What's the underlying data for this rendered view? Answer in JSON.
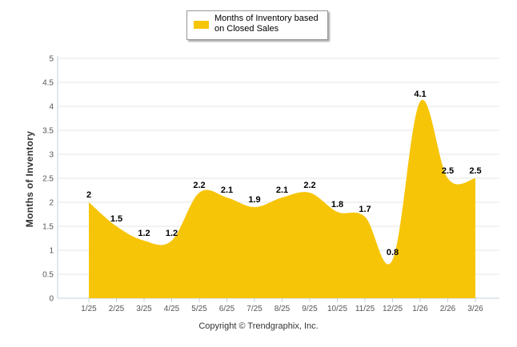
{
  "chart_data": {
    "type": "area",
    "title": "",
    "xlabel": "",
    "ylabel": "Months of Inventory",
    "ylim": [
      0,
      5
    ],
    "yticks": [
      "0",
      "0.5",
      "1",
      "1.5",
      "2",
      "2.5",
      "3",
      "3.5",
      "4",
      "4.5",
      "5"
    ],
    "categories": [
      "1/25",
      "2/25",
      "3/25",
      "4/25",
      "5/25",
      "6/25",
      "7/25",
      "8/25",
      "9/25",
      "10/25",
      "11/25",
      "12/25",
      "1/26",
      "2/26",
      "3/26"
    ],
    "series": [
      {
        "name": "Months of Inventory based on Closed Sales",
        "values": [
          2,
          1.5,
          1.2,
          1.2,
          2.2,
          2.1,
          1.9,
          2.1,
          2.2,
          1.8,
          1.7,
          0.8,
          4.1,
          2.5,
          2.5
        ],
        "labels": [
          "2",
          "1.5",
          "1.2",
          "1.2",
          "2.2",
          "2.1",
          "1.9",
          "2.1",
          "2.2",
          "1.8",
          "1.7",
          "0.8",
          "4.1",
          "2.5",
          "2.5"
        ],
        "color": "#f7c508"
      }
    ],
    "legend": {
      "position": "top-center",
      "label": "Months of Inventory based on Closed Sales"
    },
    "grid": true,
    "grid_color": "#e6e6e6",
    "axis_color": "#c0d0e0"
  },
  "footer": {
    "copyright": "Copyright © Trendgraphix, Inc."
  }
}
